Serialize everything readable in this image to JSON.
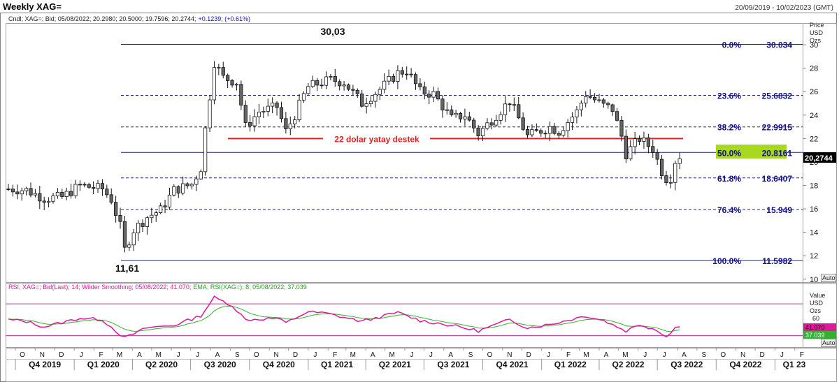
{
  "header": {
    "title": "Weekly XAG=",
    "date_range": "20/09/2019 - 10/02/2023 (GMT)",
    "info_prefix": "Cndl; XAG=; Bid; 05/08/2022; 20.2980; 20.5000; 19.7596; 20.2744;",
    "info_change": "+0.1239; (+0.61%)"
  },
  "price_axis": {
    "unit_lines": [
      "Price",
      "USD",
      "Ozs"
    ],
    "ticks": [
      "30",
      "28",
      "26",
      "24",
      "22",
      "20",
      "18",
      "16",
      "14",
      "12",
      "10"
    ],
    "last_price": "20,2744",
    "auto_label": "Auto"
  },
  "rsi_panel": {
    "legend_rsi": "RSI; XAG=; Bid(Last); 14; Wilder Smoothing; 05/08/2022; 41.070;",
    "legend_ema": "EMA; RSI(XAG=); 8; 05/08/2022; 37.039",
    "unit_lines": [
      "Value",
      "USD",
      "Ozs"
    ],
    "tick_60": "60",
    "rsi_value": "41.070",
    "ema_value": "37.039",
    "auto_label": "Auto",
    "colors": {
      "rsi": "#e0189a",
      "ema": "#34b030",
      "bands": "#c0309a"
    }
  },
  "time_axis": {
    "months": [
      "O",
      "N",
      "D",
      "J",
      "F",
      "M",
      "A",
      "M",
      "J",
      "J",
      "A",
      "S",
      "O",
      "N",
      "D",
      "J",
      "F",
      "M",
      "A",
      "M",
      "J",
      "J",
      "A",
      "S",
      "O",
      "N",
      "D",
      "J",
      "F",
      "M",
      "A",
      "M",
      "J",
      "J",
      "A",
      "S",
      "O",
      "N",
      "D",
      "J",
      "F"
    ],
    "quarters": [
      "Q4 2019",
      "Q1 2020",
      "Q2 2020",
      "Q3 2020",
      "Q4 2020",
      "Q1 2021",
      "Q2 2021",
      "Q3 2021",
      "Q4 2021",
      "Q1 2022",
      "Q2 2022",
      "Q3 2022",
      "Q4 2022",
      "Q1 23"
    ]
  },
  "annotations": {
    "high_label": "30,03",
    "low_label": "11,61",
    "support_label": "22 dolar yatay destek",
    "support_color": "#e02020",
    "highlight_color": "#a8d820"
  },
  "chart_data": {
    "type": "candlestick",
    "title": "Weekly XAG=",
    "y_unit": "Price USD Ozs",
    "ylim": [
      10,
      31.4
    ],
    "x_start": "2019-09-20",
    "x_end": "2023-02-10",
    "support_level": 22.0,
    "fibonacci": [
      {
        "label": "0.0%",
        "value": "30.034",
        "level": 30.034,
        "style": "solid"
      },
      {
        "label": "23.6%",
        "value": "25.6832",
        "level": 25.6832,
        "style": "dashed"
      },
      {
        "label": "38.2%",
        "value": "22.9915",
        "level": 22.9915,
        "style": "dashed"
      },
      {
        "label": "50.0%",
        "value": "20.8161",
        "level": 20.8161,
        "style": "solid"
      },
      {
        "label": "61.8%",
        "value": "18.6407",
        "level": 18.6407,
        "style": "dashed"
      },
      {
        "label": "76.4%",
        "value": "15.949",
        "level": 15.949,
        "style": "dashed"
      },
      {
        "label": "100.0%",
        "value": "11.5982",
        "level": 11.5982,
        "style": "solid"
      }
    ],
    "close_anchors": [
      [
        "2019-09-20",
        17.7
      ],
      [
        "2019-10-18",
        17.6
      ],
      [
        "2019-11-15",
        16.9
      ],
      [
        "2019-12-13",
        17.0
      ],
      [
        "2020-01-10",
        18.0
      ],
      [
        "2020-02-14",
        17.7
      ],
      [
        "2020-02-28",
        16.8
      ],
      [
        "2020-03-13",
        14.5
      ],
      [
        "2020-03-20",
        12.5
      ],
      [
        "2020-04-03",
        14.2
      ],
      [
        "2020-04-24",
        15.3
      ],
      [
        "2020-05-15",
        15.9
      ],
      [
        "2020-06-05",
        17.6
      ],
      [
        "2020-07-03",
        18.1
      ],
      [
        "2020-07-17",
        19.5
      ],
      [
        "2020-07-24",
        22.8
      ],
      [
        "2020-08-07",
        28.5
      ],
      [
        "2020-08-21",
        27.2
      ],
      [
        "2020-09-11",
        26.8
      ],
      [
        "2020-09-25",
        23.0
      ],
      [
        "2020-10-16",
        24.3
      ],
      [
        "2020-11-13",
        24.7
      ],
      [
        "2020-11-27",
        22.6
      ],
      [
        "2020-12-11",
        24.0
      ],
      [
        "2020-12-31",
        26.4
      ],
      [
        "2021-01-29",
        26.9
      ],
      [
        "2021-02-05",
        27.0
      ],
      [
        "2021-02-26",
        26.8
      ],
      [
        "2021-03-26",
        25.0
      ],
      [
        "2021-04-23",
        26.2
      ],
      [
        "2021-05-21",
        27.6
      ],
      [
        "2021-06-04",
        27.8
      ],
      [
        "2021-06-25",
        26.0
      ],
      [
        "2021-07-16",
        25.8
      ],
      [
        "2021-08-13",
        23.7
      ],
      [
        "2021-09-03",
        24.0
      ],
      [
        "2021-09-24",
        22.4
      ],
      [
        "2021-10-22",
        24.0
      ],
      [
        "2021-11-12",
        25.2
      ],
      [
        "2021-12-10",
        22.2
      ],
      [
        "2022-01-14",
        23.0
      ],
      [
        "2022-01-28",
        22.6
      ],
      [
        "2022-02-25",
        24.3
      ],
      [
        "2022-03-11",
        25.8
      ],
      [
        "2022-04-08",
        24.8
      ],
      [
        "2022-04-22",
        24.5
      ],
      [
        "2022-05-06",
        22.2
      ],
      [
        "2022-05-13",
        20.7
      ],
      [
        "2022-06-03",
        22.0
      ],
      [
        "2022-06-24",
        21.1
      ],
      [
        "2022-07-08",
        19.2
      ],
      [
        "2022-07-15",
        18.6
      ],
      [
        "2022-07-22",
        18.7
      ],
      [
        "2022-07-29",
        20.1
      ],
      [
        "2022-08-05",
        20.2744
      ]
    ],
    "rsi": {
      "name": "RSI; XAG=; Bid(Last); 14; Wilder Smoothing",
      "last": 41.07,
      "bands": [
        70,
        30
      ],
      "anchors": [
        [
          "2019-09-20",
          50
        ],
        [
          "2019-10-18",
          48
        ],
        [
          "2019-11-15",
          41
        ],
        [
          "2020-01-10",
          52
        ],
        [
          "2020-02-14",
          50
        ],
        [
          "2020-03-20",
          27
        ],
        [
          "2020-04-24",
          40
        ],
        [
          "2020-06-05",
          43
        ],
        [
          "2020-07-17",
          55
        ],
        [
          "2020-08-07",
          78
        ],
        [
          "2020-09-04",
          68
        ],
        [
          "2020-09-25",
          50
        ],
        [
          "2020-11-13",
          52
        ],
        [
          "2020-11-27",
          46
        ],
        [
          "2020-12-31",
          60
        ],
        [
          "2021-01-29",
          58
        ],
        [
          "2021-03-26",
          48
        ],
        [
          "2021-05-21",
          59
        ],
        [
          "2021-06-25",
          49
        ],
        [
          "2021-08-13",
          43
        ],
        [
          "2021-09-24",
          36
        ],
        [
          "2021-11-12",
          50
        ],
        [
          "2021-12-10",
          40
        ],
        [
          "2022-01-14",
          44
        ],
        [
          "2022-03-11",
          55
        ],
        [
          "2022-04-08",
          49
        ],
        [
          "2022-05-13",
          36
        ],
        [
          "2022-06-03",
          44
        ],
        [
          "2022-06-24",
          39
        ],
        [
          "2022-07-15",
          30
        ],
        [
          "2022-07-22",
          33
        ],
        [
          "2022-07-29",
          41
        ],
        [
          "2022-08-05",
          41.07
        ]
      ]
    },
    "ema": {
      "name": "EMA; RSI(XAG=); 8",
      "last": 37.039
    }
  }
}
